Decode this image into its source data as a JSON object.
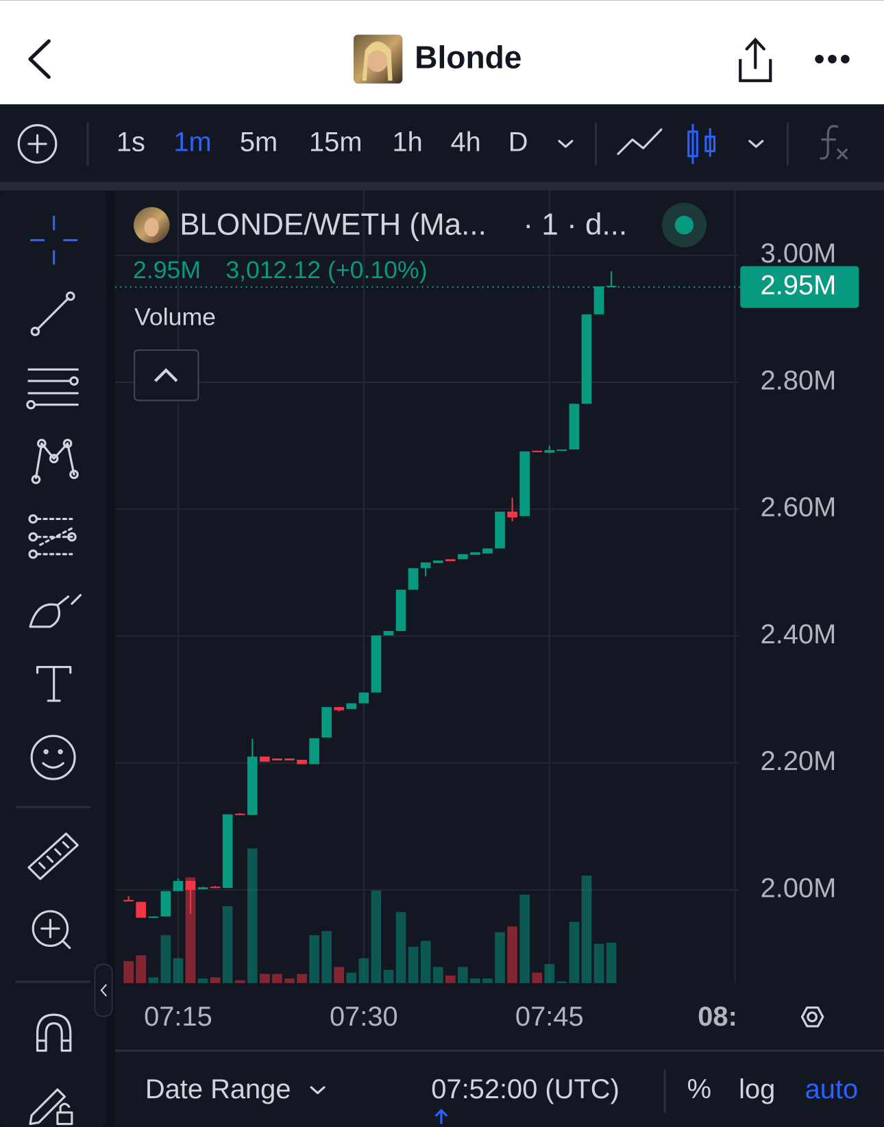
{
  "header": {
    "title": "Blonde"
  },
  "toolbar": {
    "intervals": [
      "1s",
      "1m",
      "5m",
      "15m",
      "1h",
      "4h",
      "D"
    ],
    "selected_interval": 1
  },
  "chart_data": {
    "type": "candlestick",
    "title": "BLONDE/WETH (Ma...",
    "subtitle": "· 1 · d...",
    "legend_change": "3,012.12 (+0.10%)",
    "volume_label": "Volume",
    "last_price": {
      "value": 2.95,
      "label": "2.95M"
    },
    "x": [
      11,
      12,
      13,
      14,
      15,
      16,
      17,
      18,
      19,
      20,
      21,
      22,
      23,
      24,
      25,
      26,
      27,
      28,
      29,
      30,
      31,
      32,
      33,
      34,
      35,
      36,
      37,
      38,
      39,
      40,
      41,
      42,
      43,
      44,
      45,
      46,
      47,
      48,
      49,
      50
    ],
    "open": [
      1.984,
      1.981,
      1.956,
      1.958,
      1.998,
      2.014,
      2.001,
      2.005,
      2.003,
      2.12,
      2.118,
      2.21,
      2.207,
      2.207,
      2.205,
      2.198,
      2.24,
      2.288,
      2.285,
      2.294,
      2.311,
      2.401,
      2.408,
      2.473,
      2.507,
      2.515,
      2.521,
      2.521,
      2.528,
      2.53,
      2.538,
      2.596,
      2.589,
      2.692,
      2.689,
      2.693,
      2.694,
      2.766,
      2.907,
      2.951
    ],
    "high": [
      1.99,
      1.981,
      1.958,
      1.998,
      2.018,
      2.014,
      2.005,
      2.006,
      2.119,
      2.121,
      2.238,
      2.21,
      2.207,
      2.207,
      2.205,
      2.239,
      2.288,
      2.288,
      2.294,
      2.311,
      2.401,
      2.408,
      2.473,
      2.507,
      2.516,
      2.519,
      2.521,
      2.529,
      2.532,
      2.538,
      2.596,
      2.618,
      2.691,
      2.692,
      2.7,
      2.694,
      2.766,
      2.907,
      2.951,
      2.975
    ],
    "low": [
      1.982,
      1.956,
      1.956,
      1.958,
      1.998,
      1.962,
      2.001,
      2.003,
      2.003,
      2.118,
      2.118,
      2.202,
      2.204,
      2.204,
      2.198,
      2.198,
      2.24,
      2.281,
      2.285,
      2.294,
      2.311,
      2.401,
      2.408,
      2.473,
      2.494,
      2.515,
      2.518,
      2.521,
      2.528,
      2.53,
      2.538,
      2.581,
      2.589,
      2.69,
      2.689,
      2.693,
      2.694,
      2.766,
      2.907,
      2.951
    ],
    "close": [
      1.982,
      1.956,
      1.958,
      1.998,
      2.014,
      2.0,
      2.004,
      2.003,
      2.119,
      2.118,
      2.21,
      2.202,
      2.204,
      2.204,
      2.198,
      2.239,
      2.288,
      2.283,
      2.294,
      2.311,
      2.401,
      2.408,
      2.473,
      2.507,
      2.516,
      2.519,
      2.518,
      2.529,
      2.532,
      2.538,
      2.596,
      2.587,
      2.691,
      2.69,
      2.693,
      2.694,
      2.766,
      2.907,
      2.951,
      2.952
    ],
    "volume": [
      38,
      48,
      10,
      83,
      43,
      183,
      8,
      10,
      133,
      5,
      233,
      16,
      16,
      8,
      16,
      83,
      90,
      28,
      18,
      43,
      160,
      23,
      123,
      63,
      73,
      28,
      13,
      28,
      8,
      8,
      88,
      98,
      153,
      18,
      33,
      3,
      106,
      186,
      68,
      70
    ],
    "up_color": "#089981",
    "down_color": "#f23645",
    "xlim": [
      9.9,
      60.3
    ],
    "xticks": [
      {
        "value": 15,
        "label": "07:15"
      },
      {
        "value": 30,
        "label": "07:30"
      },
      {
        "value": 45,
        "label": "07:45"
      },
      {
        "value": 60,
        "label": "08:"
      }
    ],
    "ylim": [
      1.853,
      3.102
    ],
    "yticks": [
      {
        "value": 2,
        "label": "2.00M"
      },
      {
        "value": 2.2,
        "label": "2.20M"
      },
      {
        "value": 2.4,
        "label": "2.40M"
      },
      {
        "value": 2.6,
        "label": "2.60M"
      },
      {
        "value": 2.8,
        "label": "2.80M"
      },
      {
        "value": 3,
        "label": "3.00M"
      }
    ],
    "grid": true
  },
  "footer": {
    "date_range": "Date Range",
    "time": "07:52:00 (UTC)",
    "percent": "%",
    "log": "log",
    "auto": "auto"
  }
}
